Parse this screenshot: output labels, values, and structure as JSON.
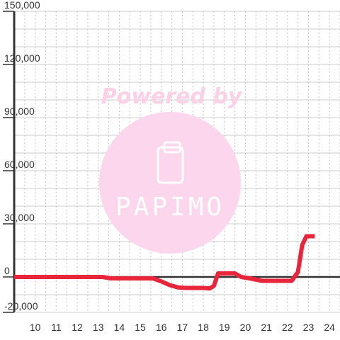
{
  "chart_data": {
    "type": "line",
    "title": "",
    "xlabel": "",
    "ylabel": "",
    "xlim": [
      9,
      24.5
    ],
    "ylim": [
      -20000,
      150000
    ],
    "x_ticks": [
      10,
      11,
      12,
      13,
      14,
      15,
      16,
      17,
      18,
      19,
      20,
      21,
      22,
      23,
      24
    ],
    "y_ticks": [
      -20000,
      0,
      30000,
      60000,
      90000,
      120000,
      150000
    ],
    "y_tick_labels": [
      "-20,000",
      "0",
      "30,000",
      "60,000",
      "90,000",
      "120,000",
      "150,000"
    ],
    "grid": true,
    "series": [
      {
        "color": "#e8253a",
        "points": [
          [
            9.0,
            0
          ],
          [
            13.2,
            0
          ],
          [
            13.6,
            -800
          ],
          [
            15.0,
            -800
          ],
          [
            15.6,
            -800
          ],
          [
            16.0,
            -2500
          ],
          [
            16.4,
            -4600
          ],
          [
            16.8,
            -5900
          ],
          [
            17.2,
            -6200
          ],
          [
            18.0,
            -6200
          ],
          [
            18.3,
            -6500
          ],
          [
            18.5,
            -5000
          ],
          [
            18.7,
            2000
          ],
          [
            19.5,
            2000
          ],
          [
            19.8,
            0
          ],
          [
            20.2,
            -800
          ],
          [
            20.8,
            -2200
          ],
          [
            21.5,
            -2200
          ],
          [
            22.2,
            -2200
          ],
          [
            22.5,
            2800
          ],
          [
            22.7,
            18000
          ],
          [
            22.9,
            23000
          ],
          [
            23.3,
            23000
          ]
        ]
      }
    ]
  },
  "watermark": {
    "text": "Powered by",
    "brand": "PAPIMO",
    "circle_color": "#fcd6ec",
    "text_color": "#fcd0e6",
    "brand_color": "#ffffff"
  }
}
